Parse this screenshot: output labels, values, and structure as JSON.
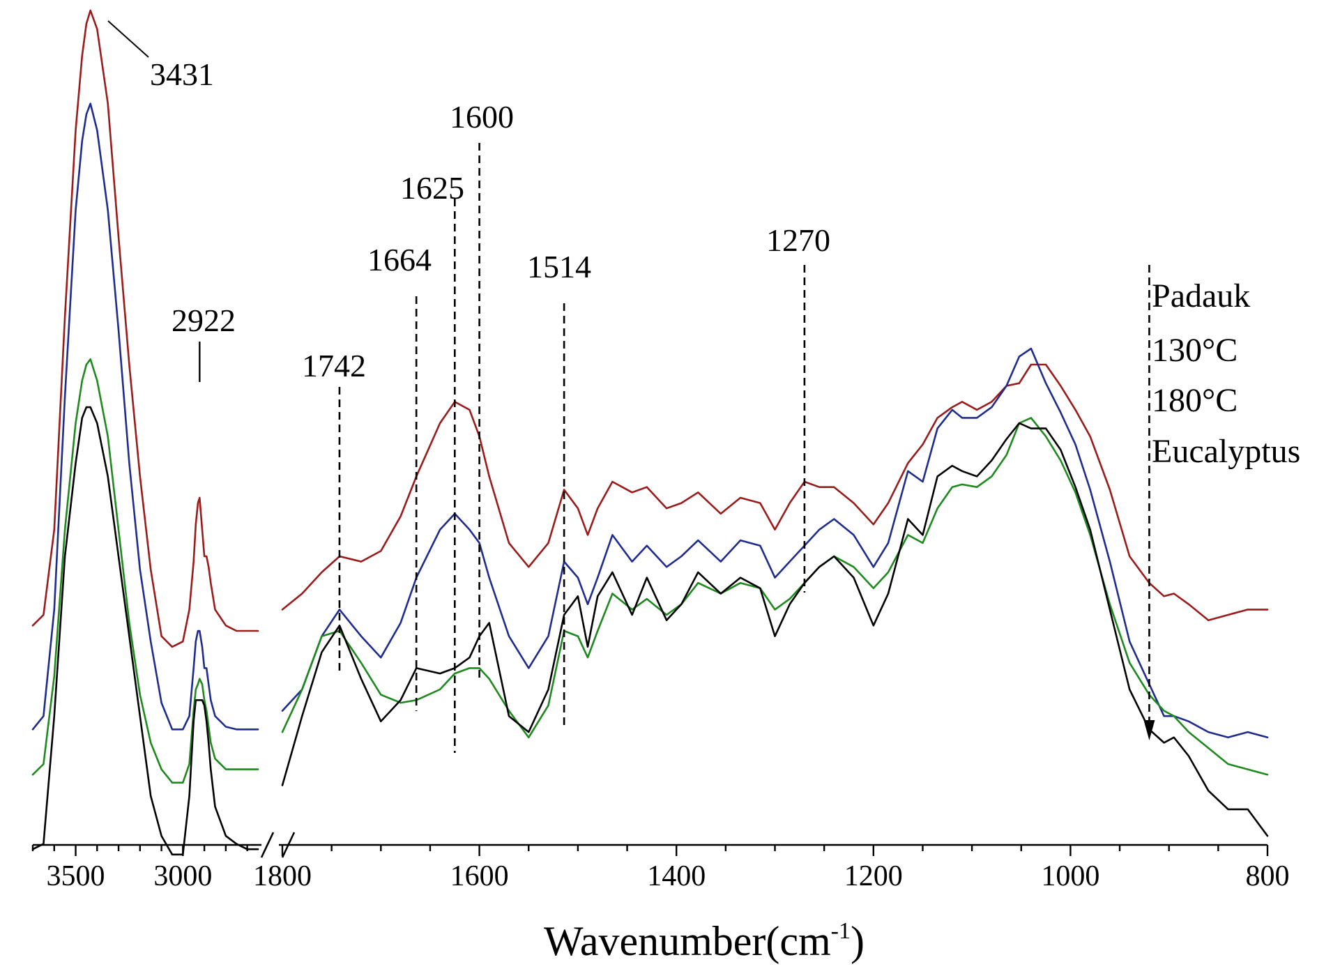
{
  "chart_data": {
    "type": "line",
    "title": "",
    "xlabel_main": "Wavenumber(cm",
    "xlabel_sup": "-1",
    "xlabel_close": ")",
    "ylabel": "",
    "x_axis_segments": [
      {
        "range": [
          3700,
          2650
        ],
        "ticks": [
          3500,
          3000
        ]
      },
      {
        "range": [
          1800,
          800
        ],
        "ticks": [
          1800,
          1600,
          1400,
          1200,
          1000,
          800
        ]
      }
    ],
    "axis_break": "between 2650 and 1800",
    "tick_labels": [
      "3500",
      "3000",
      "1800",
      "1600",
      "1400",
      "1200",
      "1000",
      "800"
    ],
    "peak_annotations": [
      {
        "label": "3431",
        "x": 3431
      },
      {
        "label": "2922",
        "x": 2922
      },
      {
        "label": "1742",
        "x": 1742
      },
      {
        "label": "1664",
        "x": 1664
      },
      {
        "label": "1625",
        "x": 1625
      },
      {
        "label": "1600",
        "x": 1600
      },
      {
        "label": "1514",
        "x": 1514
      },
      {
        "label": "1270",
        "x": 1270
      }
    ],
    "arrow_x": 920,
    "legend_order": "top-to-bottom, right side",
    "series": [
      {
        "name": "Padauk",
        "color": "#9b1b1b",
        "x": [
          3700,
          3650,
          3600,
          3550,
          3500,
          3470,
          3450,
          3431,
          3400,
          3350,
          3300,
          3250,
          3200,
          3150,
          3100,
          3050,
          3000,
          2970,
          2950,
          2940,
          2930,
          2922,
          2910,
          2900,
          2890,
          2880,
          2870,
          2850,
          2800,
          2750,
          2700,
          2650,
          1800,
          1780,
          1760,
          1742,
          1720,
          1700,
          1680,
          1664,
          1640,
          1625,
          1610,
          1600,
          1590,
          1570,
          1550,
          1530,
          1514,
          1500,
          1490,
          1480,
          1465,
          1445,
          1430,
          1410,
          1395,
          1378,
          1355,
          1335,
          1315,
          1300,
          1285,
          1270,
          1255,
          1240,
          1220,
          1200,
          1185,
          1165,
          1150,
          1135,
          1120,
          1110,
          1095,
          1080,
          1065,
          1052,
          1040,
          1025,
          1010,
          995,
          980,
          960,
          940,
          920,
          905,
          895,
          880,
          860,
          840,
          820,
          800
        ],
        "y": [
          0.74,
          0.78,
          1.1,
          1.9,
          2.6,
          2.88,
          3.0,
          3.05,
          2.98,
          2.7,
          2.2,
          1.72,
          1.3,
          0.95,
          0.7,
          0.66,
          0.68,
          0.8,
          0.98,
          1.12,
          1.2,
          1.22,
          1.1,
          1.0,
          1.0,
          0.96,
          0.9,
          0.8,
          0.74,
          0.72,
          0.72,
          0.72,
          0.8,
          0.86,
          0.94,
          1.0,
          0.98,
          1.02,
          1.15,
          1.3,
          1.5,
          1.58,
          1.55,
          1.45,
          1.3,
          1.05,
          0.96,
          1.05,
          1.25,
          1.18,
          1.08,
          1.18,
          1.28,
          1.24,
          1.26,
          1.18,
          1.2,
          1.24,
          1.16,
          1.22,
          1.2,
          1.1,
          1.2,
          1.28,
          1.26,
          1.26,
          1.2,
          1.12,
          1.2,
          1.35,
          1.42,
          1.52,
          1.56,
          1.58,
          1.55,
          1.58,
          1.64,
          1.65,
          1.72,
          1.72,
          1.64,
          1.55,
          1.45,
          1.25,
          1.0,
          0.9,
          0.85,
          0.86,
          0.82,
          0.76,
          0.78,
          0.8,
          0.8
        ]
      },
      {
        "name": "130°C",
        "color": "#1e2b8f",
        "x": [
          3700,
          3650,
          3600,
          3550,
          3500,
          3470,
          3450,
          3431,
          3400,
          3350,
          3300,
          3250,
          3200,
          3150,
          3100,
          3050,
          3000,
          2970,
          2950,
          2940,
          2930,
          2922,
          2910,
          2900,
          2890,
          2880,
          2870,
          2850,
          2800,
          2750,
          2700,
          2650,
          1800,
          1780,
          1760,
          1742,
          1720,
          1700,
          1680,
          1664,
          1640,
          1625,
          1610,
          1600,
          1590,
          1570,
          1550,
          1530,
          1514,
          1500,
          1490,
          1480,
          1465,
          1445,
          1430,
          1410,
          1395,
          1378,
          1355,
          1335,
          1315,
          1300,
          1285,
          1270,
          1255,
          1240,
          1220,
          1200,
          1185,
          1165,
          1150,
          1135,
          1120,
          1110,
          1095,
          1080,
          1065,
          1052,
          1040,
          1025,
          1010,
          995,
          980,
          960,
          940,
          920,
          905,
          895,
          880,
          860,
          840,
          820,
          800
        ],
        "y": [
          0.35,
          0.4,
          0.8,
          1.6,
          2.3,
          2.56,
          2.66,
          2.7,
          2.6,
          2.3,
          1.85,
          1.35,
          0.95,
          0.68,
          0.45,
          0.35,
          0.35,
          0.4,
          0.58,
          0.68,
          0.72,
          0.72,
          0.66,
          0.58,
          0.58,
          0.52,
          0.46,
          0.4,
          0.36,
          0.35,
          0.35,
          0.35,
          0.42,
          0.5,
          0.7,
          0.8,
          0.7,
          0.62,
          0.75,
          0.92,
          1.1,
          1.16,
          1.1,
          1.05,
          0.92,
          0.7,
          0.58,
          0.7,
          0.98,
          0.92,
          0.82,
          0.92,
          1.08,
          0.98,
          1.04,
          0.96,
          1.0,
          1.06,
          0.98,
          1.06,
          1.04,
          0.92,
          0.98,
          1.04,
          1.1,
          1.14,
          1.08,
          0.96,
          1.05,
          1.32,
          1.28,
          1.48,
          1.55,
          1.52,
          1.52,
          1.56,
          1.64,
          1.75,
          1.78,
          1.65,
          1.54,
          1.42,
          1.25,
          0.98,
          0.68,
          0.52,
          0.4,
          0.4,
          0.38,
          0.34,
          0.32,
          0.34,
          0.32
        ]
      },
      {
        "name": "180°C",
        "color": "#1e8a1e",
        "x": [
          3700,
          3650,
          3600,
          3550,
          3500,
          3470,
          3450,
          3431,
          3400,
          3350,
          3300,
          3250,
          3200,
          3150,
          3100,
          3050,
          3000,
          2970,
          2950,
          2940,
          2930,
          2922,
          2910,
          2900,
          2890,
          2880,
          2870,
          2850,
          2800,
          2750,
          2700,
          2650,
          1800,
          1780,
          1760,
          1742,
          1720,
          1700,
          1680,
          1664,
          1640,
          1625,
          1610,
          1600,
          1590,
          1570,
          1550,
          1530,
          1514,
          1500,
          1490,
          1480,
          1465,
          1445,
          1430,
          1410,
          1395,
          1378,
          1355,
          1335,
          1315,
          1300,
          1285,
          1270,
          1255,
          1240,
          1220,
          1200,
          1185,
          1165,
          1150,
          1135,
          1120,
          1110,
          1095,
          1080,
          1065,
          1052,
          1040,
          1025,
          1010,
          995,
          980,
          960,
          940,
          920,
          905,
          895,
          880,
          860,
          840,
          820,
          800
        ],
        "y": [
          0.18,
          0.22,
          0.55,
          1.1,
          1.5,
          1.66,
          1.72,
          1.74,
          1.66,
          1.45,
          1.1,
          0.75,
          0.48,
          0.3,
          0.2,
          0.15,
          0.15,
          0.22,
          0.42,
          0.5,
          0.52,
          0.54,
          0.52,
          0.46,
          0.42,
          0.36,
          0.3,
          0.24,
          0.2,
          0.2,
          0.2,
          0.2,
          0.34,
          0.5,
          0.7,
          0.72,
          0.6,
          0.48,
          0.45,
          0.46,
          0.5,
          0.56,
          0.58,
          0.58,
          0.54,
          0.42,
          0.32,
          0.44,
          0.72,
          0.7,
          0.62,
          0.72,
          0.86,
          0.8,
          0.84,
          0.78,
          0.82,
          0.9,
          0.86,
          0.9,
          0.88,
          0.8,
          0.84,
          0.9,
          0.96,
          1.0,
          0.96,
          0.88,
          0.94,
          1.08,
          1.05,
          1.18,
          1.26,
          1.27,
          1.26,
          1.3,
          1.38,
          1.5,
          1.52,
          1.45,
          1.36,
          1.24,
          1.08,
          0.82,
          0.6,
          0.48,
          0.42,
          0.4,
          0.34,
          0.28,
          0.22,
          0.2,
          0.18
        ]
      },
      {
        "name": "Eucalyptus",
        "color": "#000000",
        "x": [
          3700,
          3650,
          3600,
          3550,
          3500,
          3470,
          3450,
          3431,
          3400,
          3350,
          3300,
          3250,
          3200,
          3150,
          3100,
          3050,
          3000,
          2970,
          2950,
          2940,
          2930,
          2922,
          2910,
          2900,
          2890,
          2880,
          2870,
          2850,
          2800,
          2750,
          2700,
          2650,
          1800,
          1780,
          1760,
          1742,
          1720,
          1700,
          1680,
          1664,
          1640,
          1625,
          1610,
          1600,
          1590,
          1570,
          1550,
          1530,
          1514,
          1500,
          1490,
          1480,
          1465,
          1445,
          1430,
          1410,
          1395,
          1378,
          1355,
          1335,
          1315,
          1300,
          1285,
          1270,
          1255,
          1240,
          1220,
          1200,
          1185,
          1165,
          1150,
          1135,
          1120,
          1110,
          1095,
          1080,
          1065,
          1052,
          1040,
          1025,
          1010,
          995,
          980,
          960,
          940,
          920,
          905,
          895,
          880,
          860,
          840,
          820,
          800
        ],
        "y": [
          -0.1,
          -0.08,
          0.4,
          1.0,
          1.35,
          1.52,
          1.56,
          1.56,
          1.5,
          1.3,
          1.0,
          0.7,
          0.4,
          0.1,
          -0.05,
          -0.12,
          -0.12,
          0.1,
          0.38,
          0.46,
          0.46,
          0.46,
          0.46,
          0.44,
          0.38,
          0.3,
          0.2,
          0.06,
          -0.05,
          -0.08,
          -0.1,
          -0.1,
          0.14,
          0.4,
          0.64,
          0.74,
          0.54,
          0.38,
          0.46,
          0.58,
          0.56,
          0.58,
          0.62,
          0.7,
          0.75,
          0.4,
          0.34,
          0.5,
          0.78,
          0.85,
          0.66,
          0.85,
          0.94,
          0.78,
          0.92,
          0.76,
          0.82,
          0.94,
          0.86,
          0.92,
          0.88,
          0.7,
          0.82,
          0.9,
          0.96,
          1.0,
          0.92,
          0.74,
          0.86,
          1.14,
          1.08,
          1.3,
          1.34,
          1.32,
          1.3,
          1.36,
          1.44,
          1.5,
          1.48,
          1.48,
          1.4,
          1.26,
          1.1,
          0.8,
          0.5,
          0.35,
          0.3,
          0.32,
          0.25,
          0.12,
          0.05,
          0.05,
          -0.05
        ]
      }
    ]
  }
}
